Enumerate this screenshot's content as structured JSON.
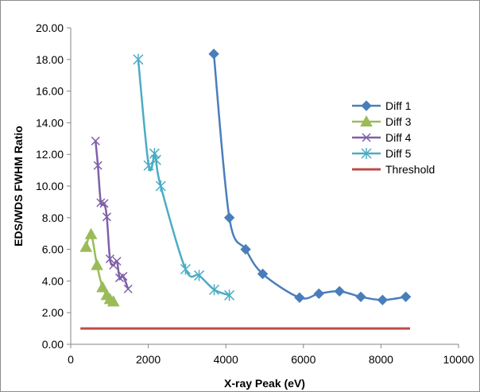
{
  "chart_data": {
    "type": "line",
    "xlabel": "X-ray Peak (eV)",
    "ylabel": "EDS/WDS FWHM Ratio",
    "xlim": [
      0,
      10000
    ],
    "ylim": [
      0,
      20
    ],
    "x_ticks": [
      "0",
      "2000",
      "4000",
      "6000",
      "8000",
      "10000"
    ],
    "y_ticks": [
      "0.00",
      "2.00",
      "4.00",
      "6.00",
      "8.00",
      "10.00",
      "12.00",
      "14.00",
      "16.00",
      "18.00",
      "20.00"
    ],
    "grid": false,
    "legend": "right",
    "series": [
      {
        "name": "Diff 1",
        "color": "#4a7ebb",
        "marker": "diamond",
        "points": [
          [
            3690,
            18.35
          ],
          [
            4090,
            8.0
          ],
          [
            4510,
            6.0
          ],
          [
            4950,
            4.45
          ],
          [
            5900,
            2.95
          ],
          [
            6400,
            3.2
          ],
          [
            6930,
            3.35
          ],
          [
            7480,
            3.0
          ],
          [
            8040,
            2.8
          ],
          [
            8640,
            3.0
          ]
        ]
      },
      {
        "name": "Diff 3",
        "color": "#9bbb59",
        "marker": "triangle",
        "points": [
          [
            395,
            6.15
          ],
          [
            525,
            6.95
          ],
          [
            677,
            5.0
          ],
          [
            820,
            3.6
          ],
          [
            930,
            3.1
          ],
          [
            1012,
            2.85
          ],
          [
            1100,
            2.7
          ]
        ]
      },
      {
        "name": "Diff 4",
        "color": "#7f60a8",
        "marker": "x",
        "points": [
          [
            640,
            12.85
          ],
          [
            700,
            11.3
          ],
          [
            776,
            8.95
          ],
          [
            860,
            8.9
          ],
          [
            930,
            8.05
          ],
          [
            1012,
            5.4
          ],
          [
            1100,
            5.0
          ],
          [
            1190,
            5.25
          ],
          [
            1260,
            4.2
          ],
          [
            1350,
            4.3
          ],
          [
            1480,
            3.5
          ]
        ]
      },
      {
        "name": "Diff 5",
        "color": "#4bacc6",
        "marker": "asterisk",
        "points": [
          [
            1740,
            18.0
          ],
          [
            2010,
            11.3
          ],
          [
            2160,
            12.05
          ],
          [
            2200,
            11.65
          ],
          [
            2320,
            10.0
          ],
          [
            2960,
            4.75
          ],
          [
            3310,
            4.35
          ],
          [
            3700,
            3.45
          ],
          [
            4090,
            3.1
          ]
        ]
      },
      {
        "name": "Threshold",
        "color": "#be4b48",
        "marker": "none",
        "points": [
          [
            250,
            1.0
          ],
          [
            8750,
            1.0
          ]
        ]
      }
    ]
  }
}
